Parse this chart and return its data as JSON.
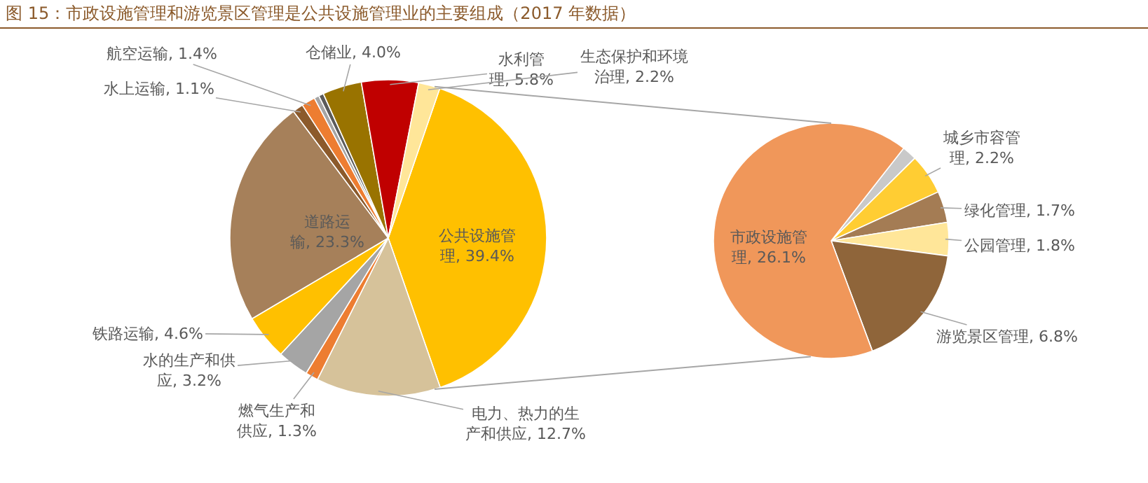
{
  "chart_data": [
    {
      "type": "pie",
      "title": "图 15：市政设施管理和游览景区管理是公共设施管理业的主要组成（2017 年数据）",
      "categories": [
        "公共设施管理",
        "电力、热力的生产和供应",
        "燃气生产和供应",
        "水的生产和供应",
        "铁路运输",
        "道路运输",
        "水上运输",
        "航空运输",
        null,
        null,
        "仓储业",
        "水利管理",
        "生态保护和环境治理"
      ],
      "values": [
        39.4,
        12.7,
        1.3,
        3.2,
        4.6,
        23.3,
        1.1,
        1.4,
        0.5,
        0.5,
        4.0,
        5.8,
        2.2
      ],
      "value_labels": [
        "39.4%",
        "12.7%",
        "1.3%",
        "3.2%",
        "4.6%",
        "23.3%",
        "1.1%",
        "1.4%",
        null,
        null,
        "4.0%",
        "5.8%",
        "2.2%"
      ],
      "colors": [
        "#ffc000",
        "#d6c29a",
        "#ed7d31",
        "#a5a5a5",
        "#ffc000",
        "#a6805a",
        "#8c5a2b",
        "#ed7d31",
        "#a5a5a5",
        "#5b5b5b",
        "#997300",
        "#c00000",
        "#ffe699"
      ]
    },
    {
      "type": "pie",
      "categories": [
        null,
        "城乡市容管理",
        "绿化管理",
        "公园管理",
        "游览景区管理",
        "市政设施管理"
      ],
      "values": [
        0.8,
        2.2,
        1.7,
        1.8,
        6.8,
        26.1
      ],
      "value_labels": [
        null,
        "2.2%",
        "1.7%",
        "1.8%",
        "6.8%",
        "26.1%"
      ],
      "colors": [
        "#c9c9c9",
        "#ffcd33",
        "#a47c54",
        "#ffe699",
        "#8f653a",
        "#f0975a"
      ]
    }
  ]
}
